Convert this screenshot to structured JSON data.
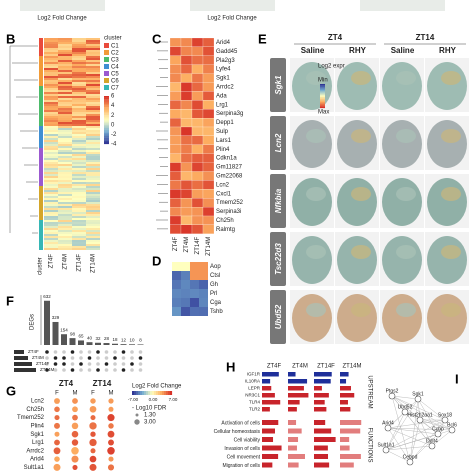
{
  "top": {
    "labels": [
      "Log2 Fold Change",
      "Log2 Fold Change"
    ]
  },
  "panel_b": {
    "letter": "B",
    "legend_title": "cluster",
    "clusters": [
      "C1",
      "C2",
      "C3",
      "C4",
      "C5",
      "C6",
      "C7"
    ],
    "scale_ticks": [
      "6",
      "4",
      "2",
      "0",
      "-2",
      "-4"
    ],
    "columns": [
      "ZT4F",
      "ZT4M",
      "ZT14F",
      "ZT14M"
    ],
    "side_label": "cluster"
  },
  "panel_c": {
    "letter": "C",
    "genes": [
      "Arid4",
      "Gadd45",
      "Pla2g3",
      "Lyfe4",
      "Sgk1",
      "Arrdc2",
      "Ada",
      "Lrg1",
      "Serpina3g",
      "Depp1",
      "Sulp",
      "Lars1",
      "Plin4",
      "Cdkn1a",
      "Gm11827",
      "Gm22068",
      "Lcn2",
      "Cxcl1",
      "Tmem252",
      "Serpina3i",
      "Ch25h",
      "Ralmtg"
    ],
    "columns": [
      "ZT4F",
      "ZT4M",
      "ZT14F",
      "ZT14M"
    ]
  },
  "panel_d": {
    "letter": "D",
    "genes": [
      "Aop",
      "Ctsl",
      "Gh",
      "Prl",
      "Cga",
      "Tshb"
    ]
  },
  "panel_e": {
    "letter": "E",
    "times": [
      "ZT4",
      "ZT14"
    ],
    "conditions": [
      "Saline",
      "RHY",
      "Saline",
      "RHY"
    ],
    "legend_title": "Log2 expr",
    "legend_min": "Min",
    "legend_max": "Max",
    "genes": [
      "Sgk1",
      "Lcn2",
      "Nfkbia",
      "Tsc22d3",
      "Ubd52"
    ]
  },
  "panel_f": {
    "letter": "F",
    "axis_label": "DEGs",
    "counts": [
      632,
      329,
      154,
      98,
      65,
      40,
      32,
      28,
      18,
      12,
      10,
      8
    ],
    "sets": [
      "ZT4F",
      "ZT4M",
      "ZT14F",
      "ZT14M"
    ]
  },
  "panel_g": {
    "letter": "G",
    "times": [
      "ZT4",
      "ZT14"
    ],
    "sexes": [
      "F",
      "M",
      "F",
      "M"
    ],
    "genes": [
      "Lcn2",
      "Ch25h",
      "Tmem252",
      "Plin4",
      "Sgk1",
      "Lrg1",
      "Arrdc2",
      "Arid4",
      "Sult1a1"
    ],
    "legend_fc": "Log2 Fold Change",
    "fc_ticks": [
      "7.00",
      "0.00",
      "-7.00"
    ],
    "legend_fdr": "- Log10 FDR",
    "fdr_ticks": [
      "1.30",
      "3.00"
    ]
  },
  "panel_h": {
    "letter": "H",
    "columns": [
      "ZT4F",
      "ZT4M",
      "ZT14F",
      "ZT14M"
    ],
    "upstream": [
      "IGF1R",
      "IL10RA",
      "LEPR",
      "NR3C1",
      "TLR4",
      "TLR2"
    ],
    "functions": [
      "Activation of cells",
      "Cellular homeostasis",
      "Cell viability",
      "Invasion of cells",
      "Cell movement",
      "Migration of cells"
    ],
    "side_upstream": "UPSTREAM",
    "side_functions": "FUNCTIONS"
  },
  "panel_i": {
    "letter": "I",
    "nodes": [
      "Ptgs2",
      "Sgk1",
      "Ubd52",
      "Hist2h2aa1",
      "Sox18",
      "Bcl6",
      "Arid4",
      "Ccbp",
      "Ddit4",
      "Sult1a1",
      "Cebpd"
    ]
  }
}
